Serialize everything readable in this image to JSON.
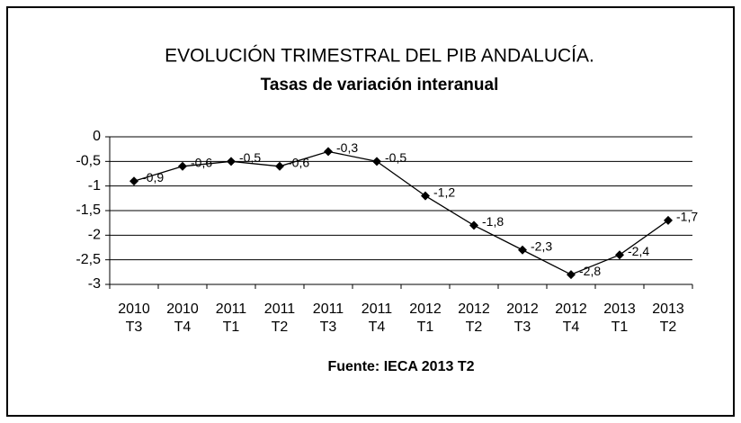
{
  "chart_data": {
    "type": "line",
    "title": "EVOLUCIÓN TRIMESTRAL DEL PIB ANDALUCÍA.",
    "subtitle": "Tasas de variación interanual",
    "source": "Fuente: IECA 2013 T2",
    "categories": [
      "2010 T3",
      "2010 T4",
      "2011 T1",
      "2011 T2",
      "2011 T3",
      "2011 T4",
      "2012 T1",
      "2012 T2",
      "2012 T3",
      "2012 T4",
      "2013 T1",
      "2013 T2"
    ],
    "values": [
      -0.9,
      -0.6,
      -0.5,
      -0.6,
      -0.3,
      -0.5,
      -1.2,
      -1.8,
      -2.3,
      -2.8,
      -2.4,
      -1.7
    ],
    "value_labels": [
      "-0,9",
      "-0,6",
      "-0,5",
      "-0,6",
      "-0,3",
      "-0,5",
      "-1,2",
      "-1,8",
      "-2,3",
      "-2,8",
      "-2,4",
      "-1,7"
    ],
    "color": "#000000",
    "ylim": [
      -3,
      0
    ],
    "yticks": [
      0,
      {
        "value": -0.5,
        "label": "-0,5"
      },
      -1,
      {
        "value": -1.5,
        "label": "-1,5"
      },
      -2,
      {
        "value": -2.5,
        "label": "-2,5"
      },
      -3
    ],
    "grid": true
  }
}
